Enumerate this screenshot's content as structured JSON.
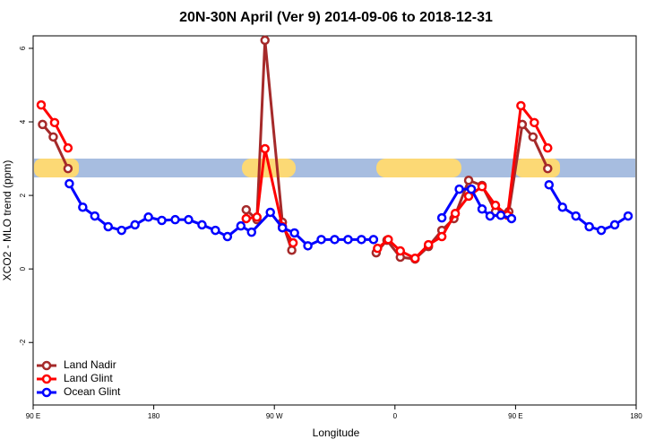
{
  "chart_data": {
    "type": "line",
    "title": "20N-30N April (Ver 9)   2014-09-06 to 2018-12-31",
    "x_label": "Longitude",
    "y_label": "XCO2 - MLO trend (ppm)",
    "xlim": [
      90,
      540
    ],
    "xticks": [
      {
        "value": 90,
        "label": "90 E"
      },
      180,
      {
        "value": 270,
        "label": "90 W"
      },
      {
        "value": 360,
        "label": "0"
      },
      {
        "value": 450,
        "label": "90 E"
      },
      {
        "value": 540,
        "label": "180"
      }
    ],
    "ylim": [
      -3.7,
      6.34
    ],
    "yticks": [
      -2,
      0,
      2,
      4,
      6
    ],
    "legend": "bottom-left",
    "series": [
      {
        "name": "Land Nadir",
        "color": "#a52a2a",
        "x": [
          97,
          105,
          116,
          null,
          249,
          257,
          263,
          276,
          283,
          null,
          346,
          354,
          364,
          375,
          385,
          395,
          404,
          415,
          425,
          435,
          445,
          455,
          463,
          474
        ],
        "values": [
          3.93,
          3.59,
          2.73,
          null,
          1.61,
          1.34,
          6.22,
          1.27,
          0.51,
          null,
          0.44,
          0.78,
          0.32,
          0.27,
          0.61,
          1.05,
          1.37,
          2.41,
          2.27,
          1.56,
          1.56,
          3.93,
          3.59,
          2.73
        ]
      },
      {
        "name": "Land Glint",
        "color": "#ff0000",
        "x": [
          96,
          106,
          116,
          null,
          249,
          257,
          263,
          276,
          284,
          null,
          347,
          355,
          364,
          375,
          385,
          395,
          405,
          415,
          425,
          435,
          444,
          454,
          464,
          474
        ],
        "values": [
          4.46,
          3.98,
          3.29,
          null,
          1.37,
          1.41,
          3.27,
          1.15,
          0.71,
          null,
          0.56,
          0.8,
          0.49,
          0.29,
          0.66,
          0.88,
          1.51,
          1.98,
          2.24,
          1.73,
          1.46,
          4.44,
          3.98,
          3.29
        ]
      },
      {
        "name": "Ocean Glint",
        "color": "#0000ff",
        "x": [
          117,
          127,
          136,
          146,
          156,
          166,
          176,
          186,
          196,
          206,
          216,
          226,
          235,
          245,
          253,
          267,
          276,
          285,
          295,
          305,
          315,
          325,
          335,
          344,
          null,
          395,
          408,
          417,
          425,
          431,
          439,
          447,
          null,
          475,
          485,
          495,
          505,
          514,
          524,
          534
        ],
        "values": [
          2.32,
          1.68,
          1.44,
          1.15,
          1.05,
          1.2,
          1.41,
          1.32,
          1.34,
          1.34,
          1.2,
          1.05,
          0.88,
          1.17,
          1.0,
          1.54,
          1.12,
          0.98,
          0.63,
          0.8,
          0.8,
          0.8,
          0.8,
          0.8,
          null,
          1.39,
          2.17,
          2.17,
          1.63,
          1.44,
          1.46,
          1.37,
          null,
          2.29,
          1.68,
          1.44,
          1.15,
          1.05,
          1.2,
          1.44
        ]
      }
    ]
  }
}
